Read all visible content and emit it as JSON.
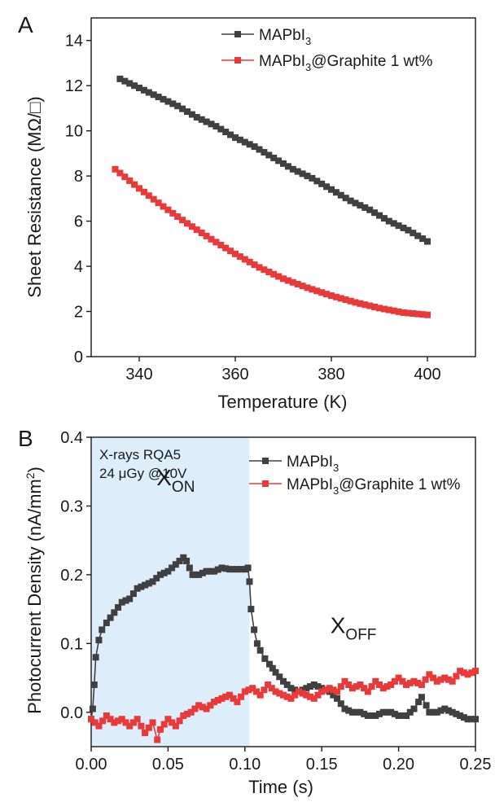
{
  "chart_data": [
    {
      "panel_label": "A",
      "type": "line",
      "xlabel": "Temperature  (K)",
      "ylabel": "Sheet Resistance (MΩ/□)",
      "xlim": [
        330,
        410
      ],
      "ylim": [
        0,
        15
      ],
      "xticks": [
        340,
        360,
        380,
        400
      ],
      "yticks": [
        0,
        2,
        4,
        6,
        8,
        10,
        12,
        14
      ],
      "legend_position": "top-right",
      "series": [
        {
          "name": "MAPbI3",
          "legend_main": "MAPbI",
          "legend_sub": "3",
          "legend_tail": "",
          "color": "#404040",
          "x": [
            336,
            340,
            344,
            348,
            352,
            356,
            360,
            364,
            368,
            372,
            376,
            380,
            384,
            388,
            392,
            396,
            400
          ],
          "y": [
            12.3,
            11.9,
            11.5,
            11.1,
            10.6,
            10.2,
            9.7,
            9.3,
            8.8,
            8.3,
            7.9,
            7.4,
            6.9,
            6.5,
            6.0,
            5.6,
            5.1
          ]
        },
        {
          "name": "MAPbI3@Graphite 1 wt%",
          "legend_main": "MAPbI",
          "legend_sub": "3",
          "legend_tail": "@Graphite 1 wt%",
          "color": "#e8393b",
          "x": [
            335,
            340,
            345,
            350,
            355,
            360,
            365,
            370,
            375,
            380,
            385,
            390,
            395,
            400
          ],
          "y": [
            8.3,
            7.45,
            6.65,
            5.9,
            5.2,
            4.55,
            3.95,
            3.45,
            3.05,
            2.7,
            2.4,
            2.15,
            1.95,
            1.85
          ]
        }
      ]
    },
    {
      "panel_label": "B",
      "type": "line",
      "xlabel": "Time (s)",
      "ylabel": "Photocurrent Density (nA/mm",
      "ylabel_sup": "2",
      "ylabel_tail": ")",
      "xlim": [
        0,
        0.25
      ],
      "ylim": [
        -0.05,
        0.4
      ],
      "xticks": [
        "0.00",
        "0.05",
        "0.10",
        "0.15",
        "0.20",
        "0.25"
      ],
      "yticks": [
        "0.0",
        "0.1",
        "0.2",
        "0.3",
        "0.4"
      ],
      "shaded_region": [
        0.0,
        0.103
      ],
      "shade_color": "#ddeefa",
      "annotation_lines": [
        "X-rays RQA5",
        "24 μGy @10V"
      ],
      "xon_main": "X",
      "xon_sub": "ON",
      "xon_pos": [
        0.055,
        0.33
      ],
      "xoff_main": "X",
      "xoff_sub": "OFF",
      "xoff_pos": [
        0.16,
        0.115
      ],
      "legend_position": "top-right",
      "series": [
        {
          "name": "MAPbI3",
          "legend_main": "MAPbI",
          "legend_sub": "3",
          "legend_tail": "",
          "color": "#404040",
          "x": [
            0.0,
            0.001,
            0.002,
            0.003,
            0.005,
            0.007,
            0.01,
            0.015,
            0.02,
            0.025,
            0.03,
            0.035,
            0.04,
            0.045,
            0.05,
            0.055,
            0.06,
            0.062,
            0.064,
            0.066,
            0.07,
            0.075,
            0.08,
            0.085,
            0.09,
            0.095,
            0.1,
            0.102,
            0.103,
            0.104,
            0.106,
            0.108,
            0.11,
            0.113,
            0.116,
            0.12,
            0.125,
            0.13,
            0.135,
            0.14,
            0.145,
            0.15,
            0.155,
            0.16,
            0.165,
            0.17,
            0.175,
            0.18,
            0.185,
            0.19,
            0.195,
            0.2,
            0.205,
            0.21,
            0.213,
            0.215,
            0.218,
            0.22,
            0.225,
            0.23,
            0.235,
            0.24,
            0.245,
            0.25
          ],
          "y": [
            -0.01,
            0.005,
            0.04,
            0.08,
            0.105,
            0.12,
            0.13,
            0.145,
            0.16,
            0.165,
            0.18,
            0.185,
            0.19,
            0.2,
            0.205,
            0.215,
            0.225,
            0.22,
            0.21,
            0.2,
            0.2,
            0.205,
            0.205,
            0.21,
            0.208,
            0.208,
            0.208,
            0.21,
            0.19,
            0.15,
            0.12,
            0.1,
            0.09,
            0.078,
            0.07,
            0.058,
            0.045,
            0.035,
            0.03,
            0.035,
            0.04,
            0.035,
            0.03,
            0.02,
            0.005,
            0.0,
            0.0,
            -0.005,
            -0.005,
            0.0,
            0.0,
            -0.005,
            -0.005,
            0.005,
            0.015,
            0.022,
            0.01,
            0.0,
            0.0,
            0.005,
            0.0,
            -0.005,
            -0.01,
            -0.01
          ]
        },
        {
          "name": "MAPbI3@Graphite 1 wt%",
          "legend_main": "MAPbI",
          "legend_sub": "3",
          "legend_tail": "@Graphite 1 wt%",
          "color": "#e8393b",
          "x": [
            0.0,
            0.005,
            0.01,
            0.015,
            0.02,
            0.025,
            0.03,
            0.035,
            0.04,
            0.043,
            0.045,
            0.05,
            0.055,
            0.06,
            0.065,
            0.07,
            0.075,
            0.08,
            0.085,
            0.09,
            0.095,
            0.1,
            0.105,
            0.11,
            0.115,
            0.12,
            0.125,
            0.13,
            0.135,
            0.14,
            0.145,
            0.15,
            0.155,
            0.16,
            0.165,
            0.17,
            0.175,
            0.18,
            0.185,
            0.19,
            0.195,
            0.2,
            0.205,
            0.21,
            0.215,
            0.22,
            0.225,
            0.23,
            0.235,
            0.24,
            0.245,
            0.25
          ],
          "y": [
            -0.01,
            -0.02,
            -0.005,
            -0.015,
            -0.01,
            -0.02,
            -0.01,
            -0.03,
            -0.015,
            -0.04,
            -0.025,
            -0.01,
            -0.02,
            -0.005,
            0.0,
            0.01,
            0.005,
            0.015,
            0.02,
            0.025,
            0.015,
            0.03,
            0.035,
            0.025,
            0.04,
            0.03,
            0.025,
            0.02,
            0.03,
            0.025,
            0.02,
            0.03,
            0.035,
            0.03,
            0.045,
            0.035,
            0.04,
            0.03,
            0.045,
            0.035,
            0.04,
            0.05,
            0.04,
            0.045,
            0.04,
            0.055,
            0.045,
            0.05,
            0.045,
            0.06,
            0.055,
            0.06
          ]
        }
      ]
    }
  ]
}
